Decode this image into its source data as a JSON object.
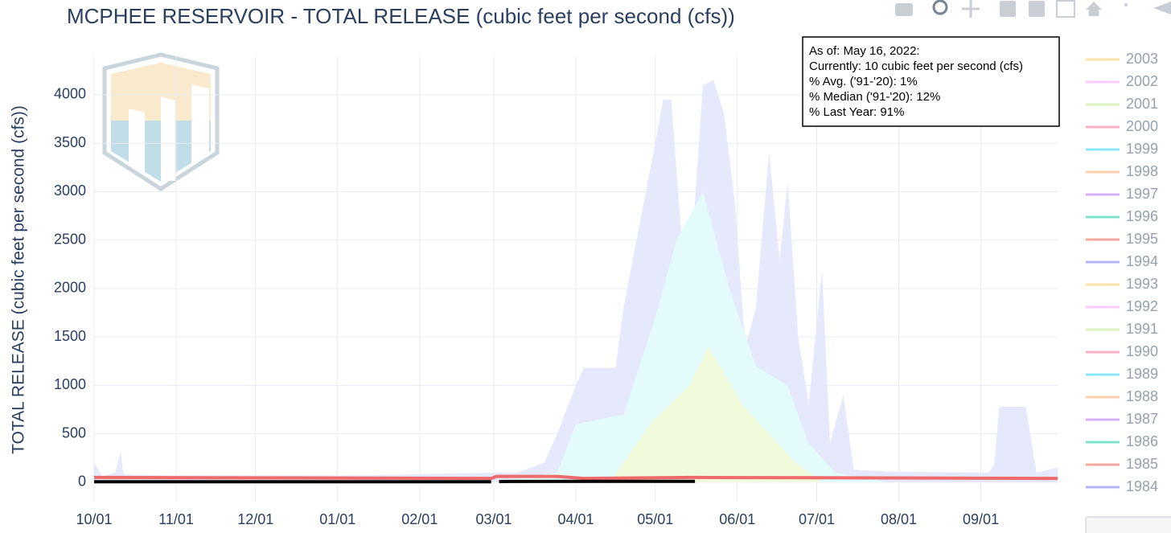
{
  "chart_data": {
    "type": "area",
    "title": "MCPHEE RESERVOIR - TOTAL RELEASE (cubic feet per second (cfs))",
    "y_label": "TOTAL RELEASE (cubic feet per second (cfs))",
    "xlim": [
      0,
      364
    ],
    "xticks": [
      {
        "value": 0,
        "label": "10/01"
      },
      {
        "value": 31,
        "label": "11/01"
      },
      {
        "value": 61,
        "label": "12/01"
      },
      {
        "value": 92,
        "label": "01/01"
      },
      {
        "value": 123,
        "label": "02/01"
      },
      {
        "value": 151,
        "label": "03/01"
      },
      {
        "value": 182,
        "label": "04/01"
      },
      {
        "value": 212,
        "label": "05/01"
      },
      {
        "value": 243,
        "label": "06/01"
      },
      {
        "value": 273,
        "label": "07/01"
      },
      {
        "value": 304,
        "label": "08/01"
      },
      {
        "value": 335,
        "label": "09/01"
      }
    ],
    "ylim": [
      -200,
      4400
    ],
    "yticks": [
      0,
      500,
      1000,
      1500,
      2000,
      2500,
      3000,
      3500,
      4000
    ],
    "grid": true,
    "series": [
      {
        "kind": "area",
        "color": "#e6e8fb",
        "x": [
          0,
          3,
          8,
          10,
          11,
          12,
          30,
          100,
          150,
          160,
          170,
          175,
          182,
          185,
          197,
          200,
          212,
          215,
          218,
          222,
          226,
          230,
          234,
          238,
          242,
          246,
          250,
          255,
          259,
          262,
          266,
          270,
          275,
          278,
          283,
          287,
          300,
          338,
          340,
          342,
          352,
          356,
          364
        ],
        "values": [
          200,
          60,
          100,
          320,
          90,
          80,
          70,
          70,
          100,
          100,
          200,
          500,
          1000,
          1180,
          1180,
          1800,
          3500,
          3950,
          3950,
          2500,
          2500,
          4100,
          4150,
          3800,
          2900,
          1400,
          1800,
          3400,
          2300,
          3100,
          1500,
          800,
          2200,
          400,
          900,
          130,
          110,
          100,
          180,
          780,
          780,
          100,
          150
        ]
      },
      {
        "kind": "area",
        "color": "#e4fbfb",
        "x": [
          150,
          175,
          182,
          200,
          212,
          220,
          230,
          240,
          250,
          262,
          270,
          280,
          300
        ],
        "values": [
          0,
          100,
          600,
          700,
          1700,
          2500,
          3000,
          2000,
          1200,
          1000,
          400,
          100,
          0
        ]
      },
      {
        "kind": "area",
        "color": "#f1fbdc",
        "x": [
          195,
          210,
          225,
          232,
          245,
          265,
          275
        ],
        "values": [
          0,
          600,
          1000,
          1400,
          800,
          200,
          0
        ]
      },
      {
        "kind": "line",
        "color": "#ef6a6a",
        "x": [
          0,
          150,
          152,
          175,
          185,
          226,
          364
        ],
        "values": [
          50,
          40,
          60,
          60,
          40,
          50,
          40
        ]
      },
      {
        "kind": "line",
        "color": "#000000",
        "x": [
          0,
          150,
          151,
          153,
          227
        ],
        "values": [
          5,
          5,
          null,
          8,
          10
        ]
      }
    ],
    "annotation": [
      "As of: May 16, 2022:",
      "Currently: 10 cubic feet per second (cfs)",
      "% Avg. ('91-'20): 1%",
      "% Median ('91-'20): 12%",
      "% Last Year: 91%"
    ],
    "legend": [
      {
        "name": "2003",
        "color": "#fecb52"
      },
      {
        "name": "2002",
        "color": "#ff97ff"
      },
      {
        "name": "2001",
        "color": "#b6e880"
      },
      {
        "name": "2000",
        "color": "#ff6692"
      },
      {
        "name": "1999",
        "color": "#19d3f3"
      },
      {
        "name": "1998",
        "color": "#ffa15a"
      },
      {
        "name": "1997",
        "color": "#ab63fa"
      },
      {
        "name": "1996",
        "color": "#00cc96"
      },
      {
        "name": "1995",
        "color": "#ef553b"
      },
      {
        "name": "1994",
        "color": "#636efa"
      },
      {
        "name": "1993",
        "color": "#fecb52"
      },
      {
        "name": "1992",
        "color": "#ff97ff"
      },
      {
        "name": "1991",
        "color": "#b6e880"
      },
      {
        "name": "1990",
        "color": "#ff6692"
      },
      {
        "name": "1989",
        "color": "#19d3f3"
      },
      {
        "name": "1988",
        "color": "#ffa15a"
      },
      {
        "name": "1987",
        "color": "#ab63fa"
      },
      {
        "name": "1986",
        "color": "#00cc96"
      },
      {
        "name": "1985",
        "color": "#ef553b"
      },
      {
        "name": "1984",
        "color": "#636efa"
      }
    ]
  }
}
